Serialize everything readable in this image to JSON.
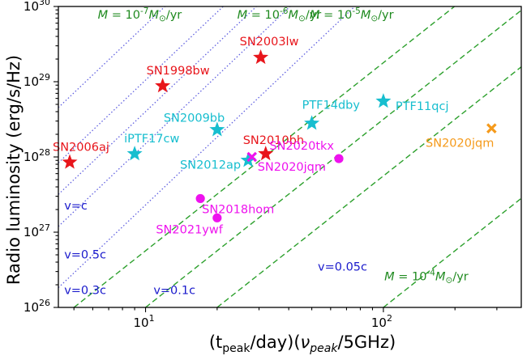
{
  "chart_data": {
    "type": "scatter",
    "x_scale": "log",
    "y_scale": "log",
    "xlim": [
      4.3,
      380
    ],
    "ylim": [
      1e+26,
      1e+30
    ],
    "xlabel_parts": [
      {
        "text": "(t"
      },
      {
        "text": "peak",
        "sub": true
      },
      {
        "text": "/day)("
      },
      {
        "text": "ν",
        "italic": true
      },
      {
        "text": "peak",
        "sub": true,
        "italic": true
      },
      {
        "text": "/5GHz)"
      }
    ],
    "ylabel": "Radio luminosity (erg/s/Hz)",
    "x_ticks": [
      {
        "value": 10,
        "base": "10",
        "exp": "1"
      },
      {
        "value": 100,
        "base": "10",
        "exp": "2"
      }
    ],
    "y_ticks": [
      {
        "value": 1e+26,
        "base": "10",
        "exp": "26"
      },
      {
        "value": 1e+27,
        "base": "10",
        "exp": "27"
      },
      {
        "value": 1e+28,
        "base": "10",
        "exp": "28"
      },
      {
        "value": 1e+29,
        "base": "10",
        "exp": "29"
      },
      {
        "value": 1e+30,
        "base": "10",
        "exp": "30"
      }
    ],
    "grid": false,
    "colors": {
      "red": "#e8151b",
      "cyan": "#17becf",
      "magenta": "#ee12ee",
      "orange": "#f59a1b",
      "mass_loss_line": "#2ca02c",
      "velocity_line": "#6060e0",
      "velocity_text": "#1a1acc",
      "mass_loss_text": "#1f8a1f"
    },
    "points": [
      {
        "name": "SN2003lw",
        "x": 30.5,
        "y": 2.1e+29,
        "marker": "star",
        "color": "#e8151b",
        "label_anchor": "start",
        "label_dx": -26,
        "label_dy": -15
      },
      {
        "name": "SN1998bw",
        "x": 11.8,
        "y": 8.8e+28,
        "marker": "star",
        "color": "#e8151b",
        "label_anchor": "start",
        "label_dx": -20,
        "label_dy": -14
      },
      {
        "name": "SN2006aj",
        "x": 4.8,
        "y": 8.5e+27,
        "marker": "star",
        "color": "#e8151b",
        "label_anchor": "start",
        "label_dx": -21,
        "label_dy": -14
      },
      {
        "name": "SN2010bh",
        "x": 32.0,
        "y": 1.1e+28,
        "marker": "star",
        "color": "#e8151b",
        "label_anchor": "start",
        "label_dx": -28,
        "label_dy": -12
      },
      {
        "name": "SN2009bb",
        "x": 20.0,
        "y": 2.3e+28,
        "marker": "star",
        "color": "#17becf",
        "label_anchor": "start",
        "label_dx": -66,
        "label_dy": -10
      },
      {
        "name": "iPTF17cw",
        "x": 9.0,
        "y": 1.1e+28,
        "marker": "star",
        "color": "#17becf",
        "label_anchor": "start",
        "label_dx": -13,
        "label_dy": -14
      },
      {
        "name": "PTF14dby",
        "x": 50.0,
        "y": 2.8e+28,
        "marker": "star",
        "color": "#17becf",
        "label_anchor": "start",
        "label_dx": -12,
        "label_dy": -18
      },
      {
        "name": "PTF11qcj",
        "x": 100.0,
        "y": 5.5e+28,
        "marker": "star",
        "color": "#17becf",
        "label_anchor": "start",
        "label_dx": 15,
        "label_dy": 11
      },
      {
        "name": "SN2012ap",
        "x": 27.0,
        "y": 9e+27,
        "marker": "star",
        "color": "#17becf",
        "label_anchor": "end",
        "label_dx": -9,
        "label_dy": 10
      },
      {
        "name": "SN2020jqm",
        "x": 28.0,
        "y": 1e+28,
        "marker": "cross",
        "color": "#ee12ee",
        "label_anchor": "start",
        "label_dx": 7,
        "label_dy": 17
      },
      {
        "name": "SN2020jqm",
        "x": 285.0,
        "y": 2.4e+28,
        "marker": "cross",
        "color": "#f59a1b",
        "label_anchor": "end",
        "label_dx": 3,
        "label_dy": 23
      },
      {
        "name": "SN2020tkx",
        "x": 65.0,
        "y": 9.5e+27,
        "marker": "circle",
        "color": "#ee12ee",
        "label_anchor": "end",
        "label_dx": -6,
        "label_dy": -11
      },
      {
        "name": "SN2018hom",
        "x": 17.0,
        "y": 2.8e+27,
        "marker": "circle",
        "color": "#ee12ee",
        "label_anchor": "start",
        "label_dx": 2,
        "label_dy": 18
      },
      {
        "name": "SN2021ywf",
        "x": 20.0,
        "y": 1.55e+27,
        "marker": "circle",
        "color": "#ee12ee",
        "label_anchor": "end",
        "label_dx": 7,
        "label_dy": 19
      }
    ],
    "mass_loss_lines": [
      {
        "mdot_exp": "-7",
        "x_at_bottom": 5.0,
        "label_x": 6.3,
        "label_y": 6.9e+29
      },
      {
        "mdot_exp": "-6",
        "x_at_bottom": 10.0,
        "label_x": 24.3,
        "label_y": 6.9e+29
      },
      {
        "mdot_exp": "-5",
        "x_at_bottom": 20.0,
        "label_x": 49.0,
        "label_y": 6.9e+29
      },
      {
        "mdot_exp": "-4",
        "x_at_bottom": 100.0,
        "label_x": 101.0,
        "label_y": 2.3e+26
      }
    ],
    "velocity_lines": [
      {
        "label": "v=c",
        "intercept": 5.7e+26,
        "label_x": 4.55,
        "label_y": 2e+27
      },
      {
        "label": "v=0.5c",
        "intercept": 1.05e+26,
        "label_x": 4.55,
        "label_y": 4.5e+26
      },
      {
        "label": "v=0.3c",
        "intercept": 4e+25,
        "label_x": 4.55,
        "label_y": 1.5e+26
      },
      {
        "label": "v=0.1c",
        "intercept": 1.5e+25,
        "label_x": 10.8,
        "label_y": 1.5e+26
      },
      {
        "label": "v=0.05c",
        "intercept": 2.3e+24,
        "label_x": 53.0,
        "label_y": 3.1e+26
      }
    ],
    "velocity_slope": 3.0,
    "mass_loss_slope": 2.5
  }
}
